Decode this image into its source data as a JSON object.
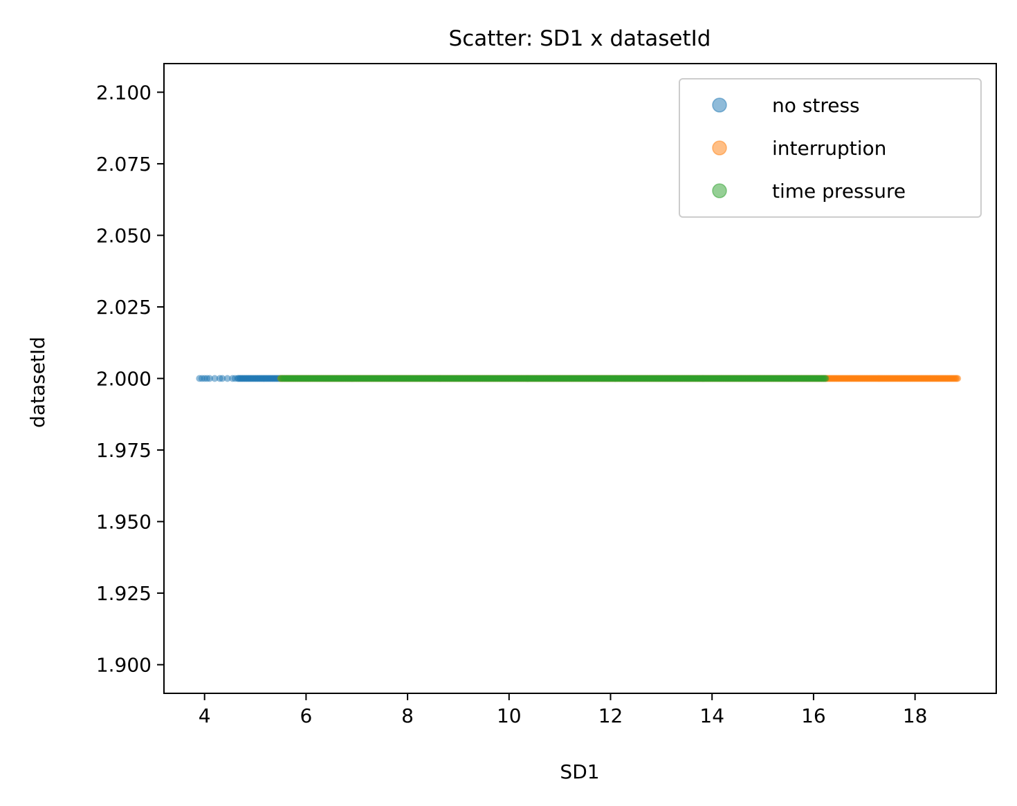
{
  "chart_data": {
    "type": "scatter",
    "title": "Scatter: SD1 x datasetId",
    "xlabel": "SD1",
    "ylabel": "datasetId",
    "xlim": [
      3.2,
      19.6
    ],
    "ylim": [
      1.89,
      2.11
    ],
    "xticks": [
      4,
      6,
      8,
      10,
      12,
      14,
      16,
      18
    ],
    "xtick_labels": [
      "4",
      "6",
      "8",
      "10",
      "12",
      "14",
      "16",
      "18"
    ],
    "yticks": [
      1.9,
      1.925,
      1.95,
      1.975,
      2.0,
      2.025,
      2.05,
      2.075,
      2.1
    ],
    "ytick_labels": [
      "1.900",
      "1.925",
      "1.950",
      "1.975",
      "2.000",
      "2.025",
      "2.050",
      "2.075",
      "2.100"
    ],
    "grid": false,
    "legend_position": "top-right",
    "series": [
      {
        "name": "no stress",
        "color": "#1f77b4",
        "y": 2.0,
        "x_min": 3.9,
        "x_max": 5.5
      },
      {
        "name": "interruption",
        "color": "#ff7f0e",
        "y": 2.0,
        "x_min": 5.5,
        "x_max": 18.85
      },
      {
        "name": "time pressure",
        "color": "#2ca02c",
        "y": 2.0,
        "x_min": 5.5,
        "x_max": 16.25
      }
    ]
  }
}
